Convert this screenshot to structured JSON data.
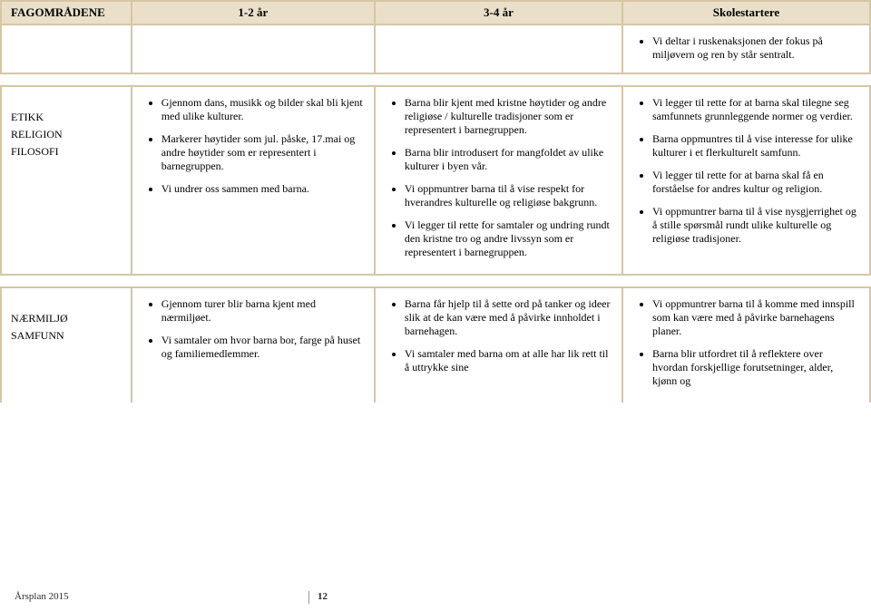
{
  "header": {
    "col1": "FAGOMRÅDENE",
    "col2": "1-2 år",
    "col3": "3-4 år",
    "col4": "Skolestartere"
  },
  "introRow": {
    "bullets": [
      "Vi deltar i ruskenaksjonen der fokus på miljøvern og ren by står sentralt."
    ]
  },
  "row1": {
    "labelLines": [
      "ETIKK",
      "RELIGION",
      "FILOSOFI"
    ],
    "col2": [
      "Gjennom dans, musikk og bilder skal bli kjent med ulike kulturer.",
      "Markerer høytider som jul. påske, 17.mai og andre høytider som er representert i barnegruppen.",
      "Vi undrer oss sammen med barna."
    ],
    "col3": [
      "Barna blir kjent med kristne høytider og andre religiøse / kulturelle tradisjoner som er representert i barnegruppen.",
      "Barna blir introdusert for mangfoldet av ulike kulturer i byen vår.",
      "Vi oppmuntrer barna til å vise respekt for hverandres kulturelle og religiøse bakgrunn.",
      "Vi legger til rette for samtaler og undring rundt den kristne tro og andre livssyn som er representert i barnegruppen."
    ],
    "col4": [
      "Vi legger til rette for at barna skal tilegne seg samfunnets grunnleggende normer og verdier.",
      "Barna oppmuntres til å vise interesse for ulike kulturer i et flerkulturelt samfunn.",
      "Vi legger til rette for at barna skal få en forståelse for andres kultur og religion.",
      "Vi oppmuntrer barna til å vise nysgjerrighet og å stille spørsmål rundt ulike kulturelle og religiøse tradisjoner."
    ]
  },
  "row2": {
    "labelLines": [
      "NÆRMILJØ",
      "SAMFUNN"
    ],
    "col2": [
      "Gjennom turer blir barna kjent med nærmiljøet.",
      "Vi samtaler om hvor barna bor, farge på huset og familiemedlemmer."
    ],
    "col3": [
      "Barna får hjelp til å sette ord på tanker og ideer slik at de kan være med å påvirke innholdet i barnehagen.",
      "Vi samtaler med barna om at alle har lik rett til å uttrykke sine"
    ],
    "col4": [
      "Vi oppmuntrer barna til å komme med innspill som kan være med å påvirke barnehagens planer.",
      "Barna blir utfordret til å reflektere over hvordan forskjellige forutsetninger, alder, kjønn og"
    ]
  },
  "footer": {
    "left": "Årsplan 2015",
    "page": "12"
  },
  "colors": {
    "headerBg": "#eae0c9",
    "border": "#d5c6a5"
  }
}
